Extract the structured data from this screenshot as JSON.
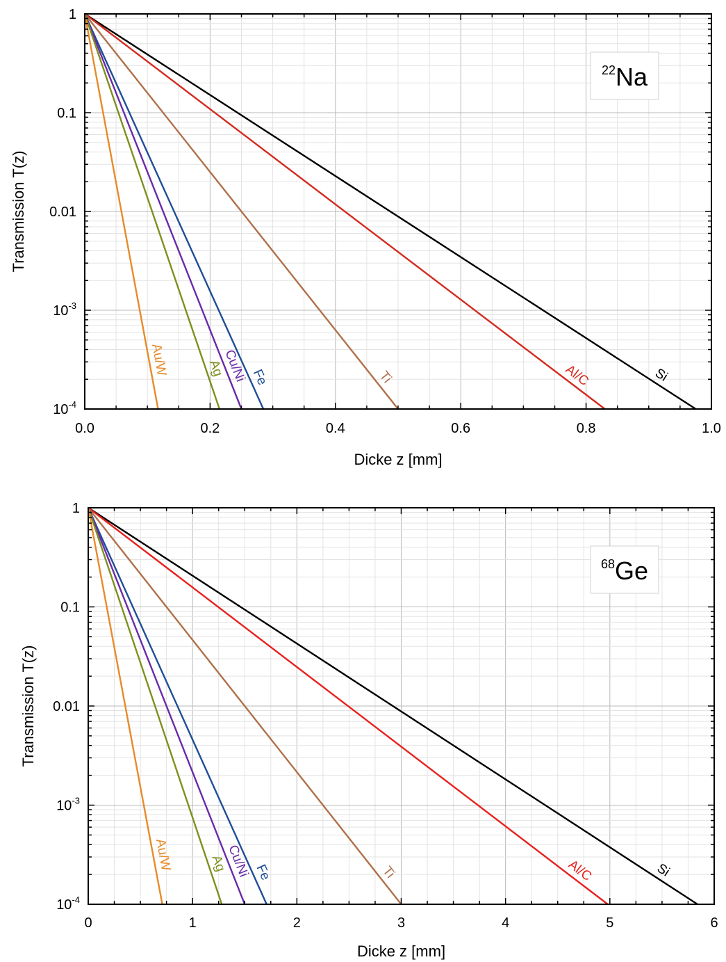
{
  "chart_data": [
    {
      "type": "line",
      "isotope": {
        "mass": "22",
        "symbol": "Na"
      },
      "xlabel": "Dicke z [mm]",
      "ylabel": "Transmission T(z)",
      "xlim": [
        0,
        1.0
      ],
      "ylim": [
        0.0001,
        1
      ],
      "yscale": "log",
      "grid": true,
      "x_ticks": [
        "0.0",
        "0.2",
        "0.4",
        "0.6",
        "0.8",
        "1.0"
      ],
      "y_ticks": [
        {
          "base": "1",
          "exp": ""
        },
        {
          "base": "0.1",
          "exp": ""
        },
        {
          "base": "0.01",
          "exp": ""
        },
        {
          "base": "10",
          "exp": "-3"
        },
        {
          "base": "10",
          "exp": "-4"
        }
      ],
      "series": [
        {
          "name": "Si",
          "color": "#000000",
          "x": [
            0,
            0.975
          ],
          "y": [
            1,
            0.0001
          ]
        },
        {
          "name": "Al/C",
          "color": "#d42a1f",
          "x": [
            0,
            0.83
          ],
          "y": [
            1,
            0.0001
          ]
        },
        {
          "name": "Ti",
          "color": "#b0704a",
          "x": [
            0,
            0.5
          ],
          "y": [
            1,
            0.0001
          ]
        },
        {
          "name": "Fe",
          "color": "#1f4e96",
          "x": [
            0,
            0.285
          ],
          "y": [
            1,
            0.0001
          ]
        },
        {
          "name": "Cu/Ni",
          "color": "#6a2aa8",
          "x": [
            0,
            0.25
          ],
          "y": [
            1,
            0.0001
          ]
        },
        {
          "name": "Ag",
          "color": "#7f8f1e",
          "x": [
            0,
            0.215
          ],
          "y": [
            1,
            0.0001
          ]
        },
        {
          "name": "Au/W",
          "color": "#e88a2a",
          "x": [
            0,
            0.117
          ],
          "y": [
            1,
            0.0001
          ]
        }
      ]
    },
    {
      "type": "line",
      "isotope": {
        "mass": "68",
        "symbol": "Ge"
      },
      "xlabel": "Dicke z [mm]",
      "ylabel": "Transmission T(z)",
      "xlim": [
        0,
        6
      ],
      "ylim": [
        0.0001,
        1
      ],
      "yscale": "log",
      "grid": true,
      "x_ticks": [
        "0",
        "1",
        "2",
        "3",
        "4",
        "5",
        "6"
      ],
      "y_ticks": [
        {
          "base": "1",
          "exp": ""
        },
        {
          "base": "0.1",
          "exp": ""
        },
        {
          "base": "0.01",
          "exp": ""
        },
        {
          "base": "10",
          "exp": "-3"
        },
        {
          "base": "10",
          "exp": "-4"
        }
      ],
      "series": [
        {
          "name": "Si",
          "color": "#000000",
          "x": [
            0,
            5.84
          ],
          "y": [
            1,
            0.0001
          ]
        },
        {
          "name": "Al/C",
          "color": "#e8211e",
          "x": [
            0,
            4.98
          ],
          "y": [
            1,
            0.0001
          ]
        },
        {
          "name": "Ti",
          "color": "#b0704a",
          "x": [
            0,
            3.0
          ],
          "y": [
            1,
            0.0001
          ]
        },
        {
          "name": "Fe",
          "color": "#1f4e96",
          "x": [
            0,
            1.71
          ],
          "y": [
            1,
            0.0001
          ]
        },
        {
          "name": "Cu/Ni",
          "color": "#6a2aa8",
          "x": [
            0,
            1.5
          ],
          "y": [
            1,
            0.0001
          ]
        },
        {
          "name": "Ag",
          "color": "#7f8f1e",
          "x": [
            0,
            1.28
          ],
          "y": [
            1,
            0.0001
          ]
        },
        {
          "name": "Au/W",
          "color": "#e88a2a",
          "x": [
            0,
            0.71
          ],
          "y": [
            1,
            0.0001
          ]
        }
      ]
    }
  ]
}
